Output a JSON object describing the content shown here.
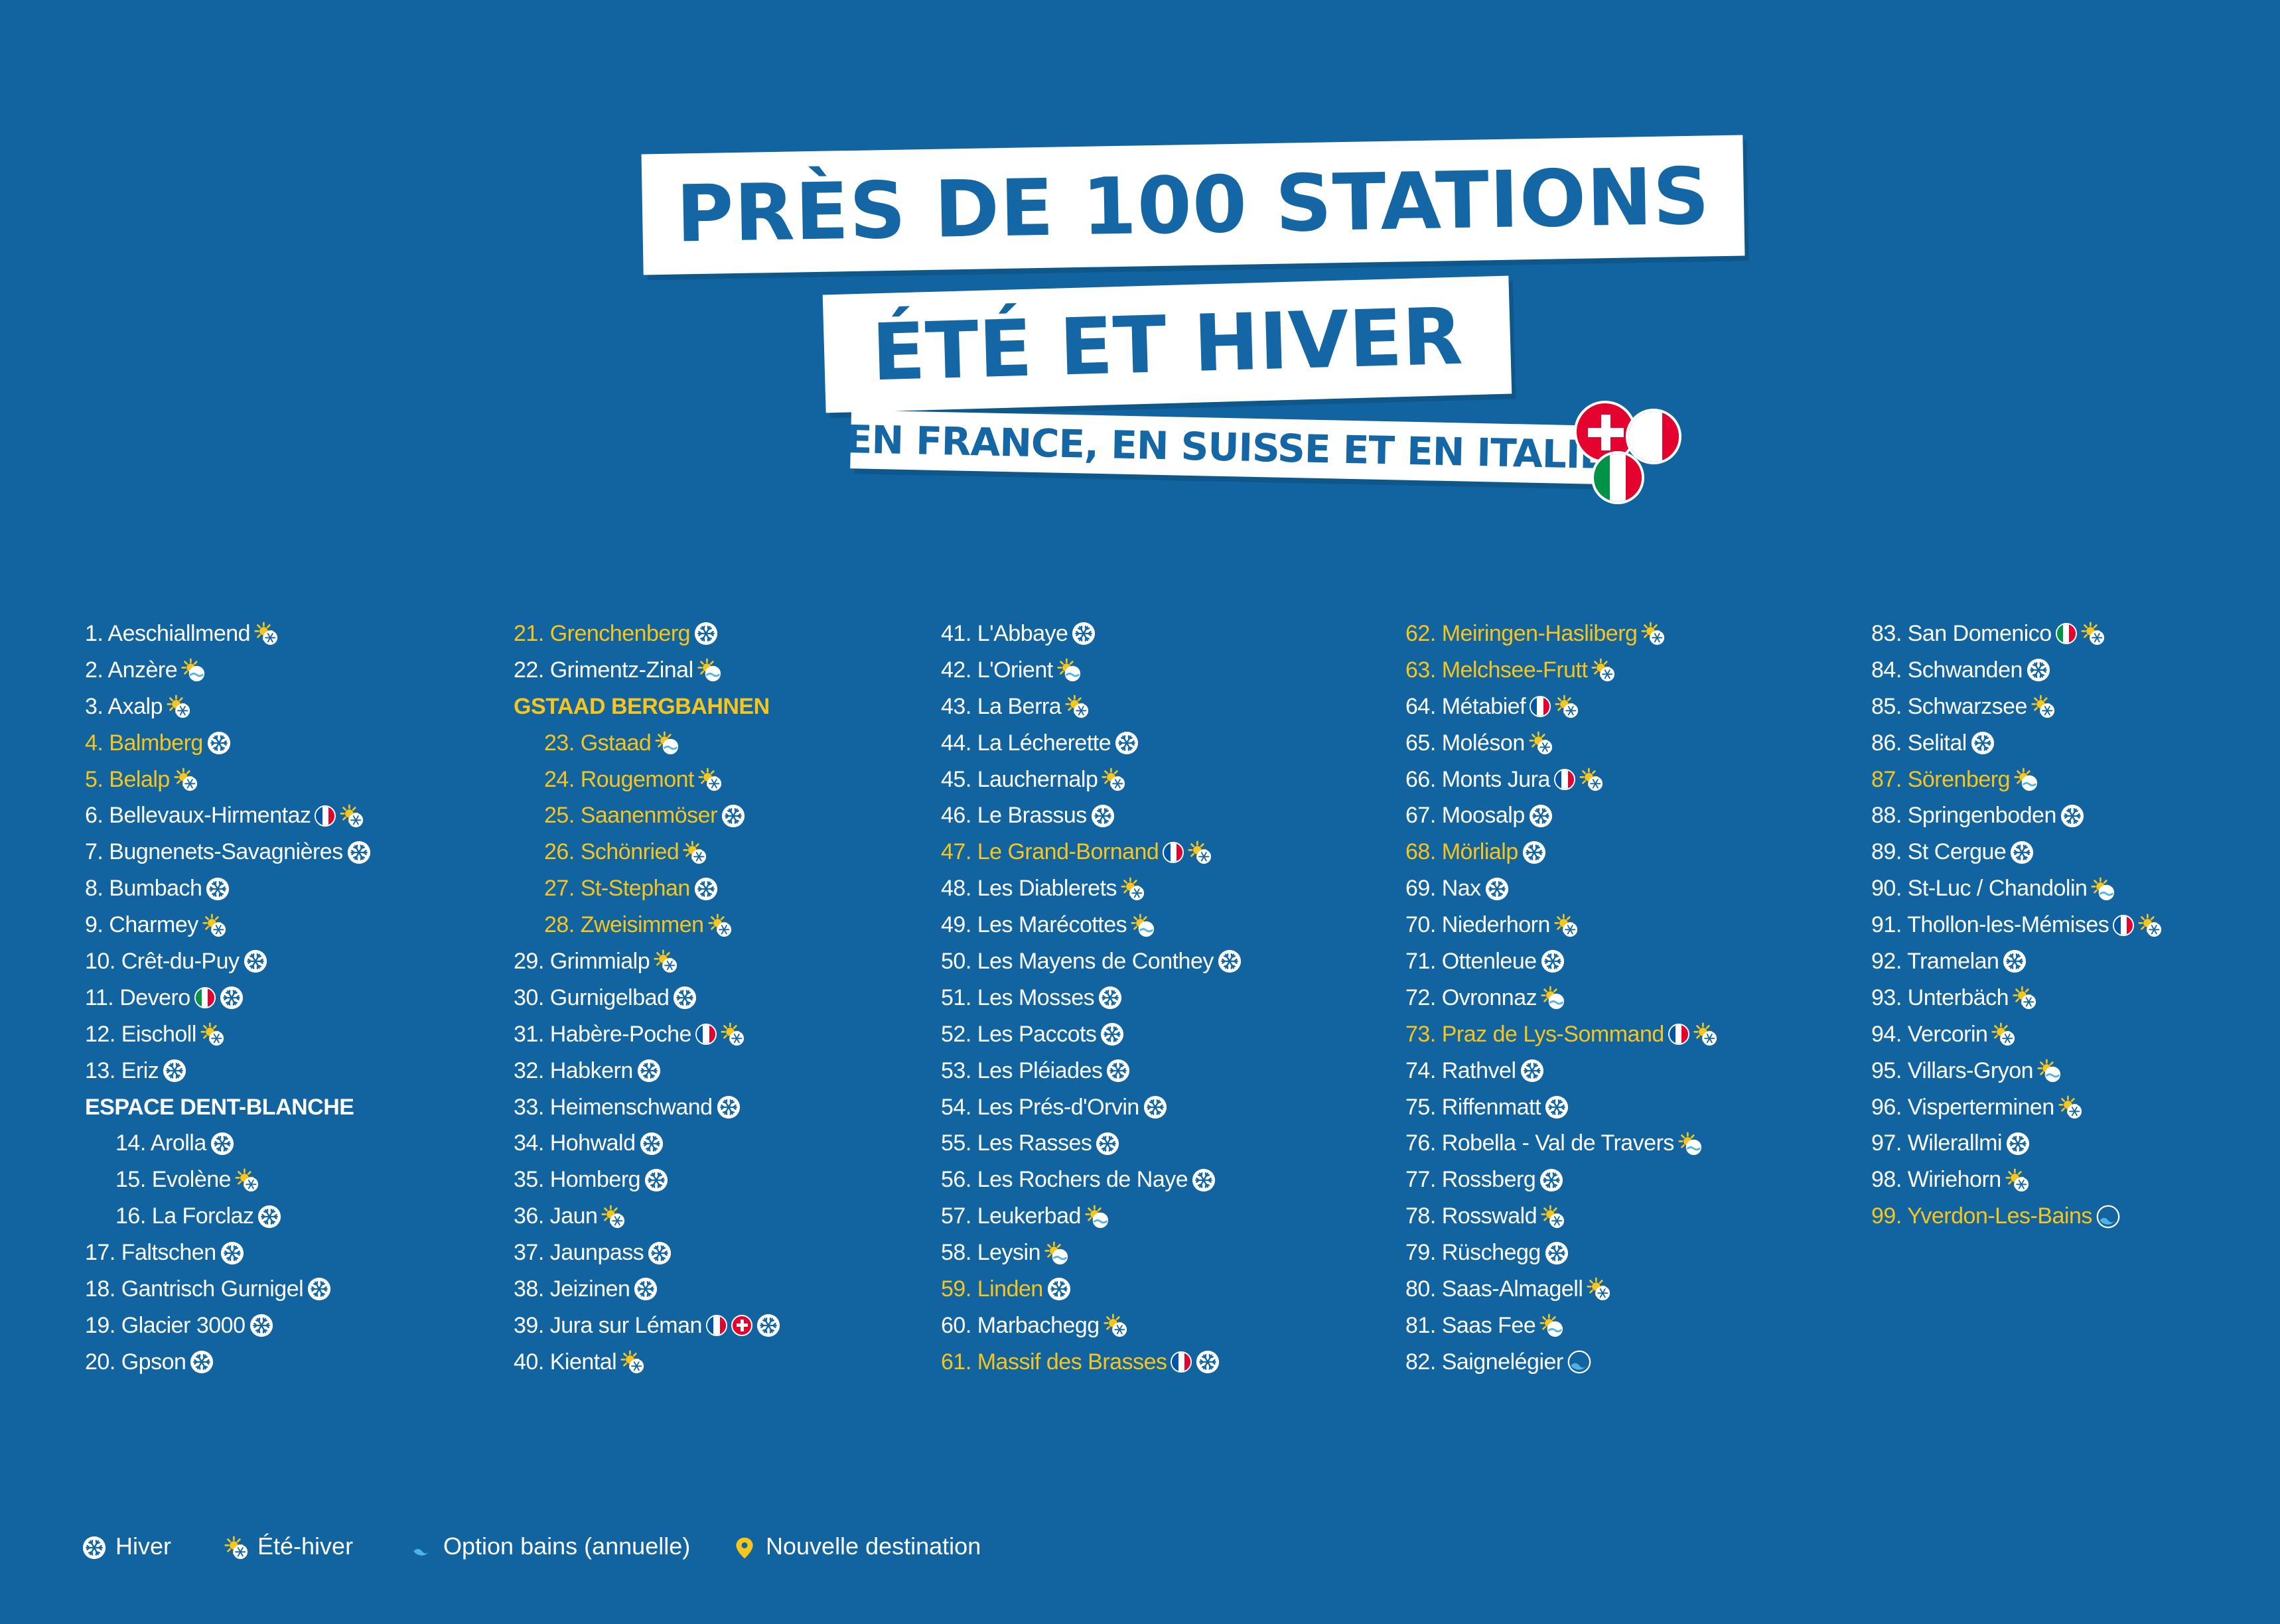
{
  "title": {
    "line1": "PRÈS DE 100 STATIONS",
    "line2": "ÉTÉ ET HIVER",
    "line3": "EN FRANCE, EN SUISSE ET EN ITALIE"
  },
  "colors": {
    "background": "#11649f",
    "highlight": "#f7c51c",
    "banner_text": "#1566a5"
  },
  "columns": [
    [
      {
        "text": "1. Aeschiallmend",
        "icons": [
          "summer-winter-icon"
        ]
      },
      {
        "text": "2. Anzère",
        "icons": [
          "bath-icon"
        ]
      },
      {
        "text": "3. Axalp",
        "icons": [
          "summer-winter-icon"
        ]
      },
      {
        "text": "4. Balmberg",
        "icons": [
          "winter-icon"
        ],
        "new": true
      },
      {
        "text": "5. Belalp",
        "icons": [
          "summer-winter-icon"
        ],
        "new": true
      },
      {
        "text": "6. Bellevaux-Hirmentaz",
        "icons": [
          "flag-fr",
          "summer-winter-icon"
        ]
      },
      {
        "text": "7. Bugnenets-Savagnières",
        "icons": [
          "winter-icon"
        ]
      },
      {
        "text": "8. Bumbach",
        "icons": [
          "winter-icon"
        ]
      },
      {
        "text": "9. Charmey",
        "icons": [
          "summer-winter-icon"
        ]
      },
      {
        "text": "10. Crêt-du-Puy",
        "icons": [
          "winter-icon"
        ]
      },
      {
        "text": "11. Devero",
        "icons": [
          "flag-it",
          "winter-icon"
        ]
      },
      {
        "text": "12. Eischoll",
        "icons": [
          "summer-winter-icon"
        ]
      },
      {
        "text": "13. Eriz",
        "icons": [
          "winter-icon"
        ]
      },
      {
        "text": "ESPACE DENT-BLANCHE",
        "heading": true
      },
      {
        "text": "14. Arolla",
        "icons": [
          "winter-icon"
        ],
        "indent": true
      },
      {
        "text": "15. Evolène",
        "icons": [
          "summer-winter-icon"
        ],
        "indent": true
      },
      {
        "text": "16. La Forclaz",
        "icons": [
          "winter-icon"
        ],
        "indent": true
      },
      {
        "text": "17. Faltschen",
        "icons": [
          "winter-icon"
        ]
      },
      {
        "text": "18. Gantrisch Gurnigel",
        "icons": [
          "winter-icon"
        ]
      },
      {
        "text": "19. Glacier 3000",
        "icons": [
          "winter-icon"
        ]
      },
      {
        "text": "20. Gpson",
        "icons": [
          "winter-icon"
        ]
      }
    ],
    [
      {
        "text": "21. Grenchenberg",
        "icons": [
          "winter-icon"
        ],
        "new": true
      },
      {
        "text": "22. Grimentz-Zinal",
        "icons": [
          "bath-icon"
        ]
      },
      {
        "text": "GSTAAD BERGBAHNEN",
        "heading": true,
        "new": true
      },
      {
        "text": "23. Gstaad",
        "icons": [
          "bath-icon"
        ],
        "indent": true,
        "new": true
      },
      {
        "text": "24. Rougemont",
        "icons": [
          "summer-winter-icon"
        ],
        "indent": true,
        "new": true
      },
      {
        "text": "25. Saanenmöser",
        "icons": [
          "winter-icon"
        ],
        "indent": true,
        "new": true
      },
      {
        "text": "26. Schönried",
        "icons": [
          "summer-winter-icon"
        ],
        "indent": true,
        "new": true
      },
      {
        "text": "27. St-Stephan",
        "icons": [
          "winter-icon"
        ],
        "indent": true,
        "new": true
      },
      {
        "text": "28. Zweisimmen",
        "icons": [
          "summer-winter-icon"
        ],
        "indent": true,
        "new": true
      },
      {
        "text": "29. Grimmialp",
        "icons": [
          "summer-winter-icon"
        ]
      },
      {
        "text": "30. Gurnigelbad",
        "icons": [
          "winter-icon"
        ]
      },
      {
        "text": "31. Habère-Poche",
        "icons": [
          "flag-fr",
          "summer-winter-icon"
        ]
      },
      {
        "text": "32. Habkern",
        "icons": [
          "winter-icon"
        ]
      },
      {
        "text": "33. Heimenschwand",
        "icons": [
          "winter-icon"
        ]
      },
      {
        "text": "34. Hohwald",
        "icons": [
          "winter-icon"
        ]
      },
      {
        "text": "35. Homberg",
        "icons": [
          "winter-icon"
        ]
      },
      {
        "text": "36. Jaun",
        "icons": [
          "summer-winter-icon"
        ]
      },
      {
        "text": "37. Jaunpass",
        "icons": [
          "winter-icon"
        ]
      },
      {
        "text": "38. Jeizinen",
        "icons": [
          "winter-icon"
        ]
      },
      {
        "text": "39. Jura sur Léman",
        "icons": [
          "flag-fr",
          "flag-ch",
          "winter-icon"
        ]
      },
      {
        "text": "40. Kiental",
        "icons": [
          "summer-winter-icon"
        ]
      }
    ],
    [
      {
        "text": "41. L'Abbaye",
        "icons": [
          "winter-icon"
        ]
      },
      {
        "text": "42. L'Orient",
        "icons": [
          "bath-icon"
        ]
      },
      {
        "text": "43. La Berra",
        "icons": [
          "summer-winter-icon"
        ]
      },
      {
        "text": "44. La Lécherette",
        "icons": [
          "winter-icon"
        ]
      },
      {
        "text": "45. Lauchernalp",
        "icons": [
          "summer-winter-icon"
        ]
      },
      {
        "text": "46. Le Brassus",
        "icons": [
          "winter-icon"
        ]
      },
      {
        "text": "47. Le Grand-Bornand",
        "icons": [
          "flag-fr",
          "summer-winter-icon"
        ],
        "new": true
      },
      {
        "text": "48. Les Diablerets",
        "icons": [
          "summer-winter-icon"
        ]
      },
      {
        "text": "49. Les Marécottes",
        "icons": [
          "bath-icon"
        ]
      },
      {
        "text": "50. Les Mayens de Conthey",
        "icons": [
          "winter-icon"
        ]
      },
      {
        "text": "51. Les Mosses",
        "icons": [
          "winter-icon"
        ]
      },
      {
        "text": "52. Les Paccots",
        "icons": [
          "winter-icon"
        ]
      },
      {
        "text": "53. Les Pléiades",
        "icons": [
          "winter-icon"
        ]
      },
      {
        "text": "54. Les Prés-d'Orvin",
        "icons": [
          "winter-icon"
        ]
      },
      {
        "text": "55. Les Rasses",
        "icons": [
          "winter-icon"
        ]
      },
      {
        "text": "56. Les Rochers de Naye",
        "icons": [
          "winter-icon"
        ]
      },
      {
        "text": "57. Leukerbad",
        "icons": [
          "bath-icon"
        ]
      },
      {
        "text": "58. Leysin",
        "icons": [
          "bath-icon"
        ]
      },
      {
        "text": "59. Linden",
        "icons": [
          "winter-icon"
        ],
        "new": true
      },
      {
        "text": "60. Marbachegg",
        "icons": [
          "summer-winter-icon"
        ]
      },
      {
        "text": "61. Massif des Brasses",
        "icons": [
          "flag-fr",
          "winter-icon"
        ],
        "new": true
      }
    ],
    [
      {
        "text": "62. Meiringen-Hasliberg",
        "icons": [
          "summer-winter-icon"
        ],
        "new": true
      },
      {
        "text": "63. Melchsee-Frutt",
        "icons": [
          "summer-winter-icon"
        ],
        "new": true
      },
      {
        "text": "64. Métabief",
        "icons": [
          "flag-fr",
          "summer-winter-icon"
        ]
      },
      {
        "text": "65. Moléson",
        "icons": [
          "summer-winter-icon"
        ]
      },
      {
        "text": "66. Monts Jura",
        "icons": [
          "flag-fr",
          "summer-winter-icon"
        ]
      },
      {
        "text": "67. Moosalp",
        "icons": [
          "winter-icon"
        ]
      },
      {
        "text": "68. Mörlialp",
        "icons": [
          "winter-icon"
        ],
        "new": true
      },
      {
        "text": "69. Nax",
        "icons": [
          "winter-icon"
        ]
      },
      {
        "text": "70. Niederhorn",
        "icons": [
          "summer-winter-icon"
        ]
      },
      {
        "text": "71. Ottenleue",
        "icons": [
          "winter-icon"
        ]
      },
      {
        "text": "72. Ovronnaz",
        "icons": [
          "bath-icon"
        ]
      },
      {
        "text": "73. Praz de Lys-Sommand",
        "icons": [
          "flag-fr",
          "summer-winter-icon"
        ],
        "new": true
      },
      {
        "text": "74. Rathvel",
        "icons": [
          "winter-icon"
        ]
      },
      {
        "text": "75. Riffenmatt",
        "icons": [
          "winter-icon"
        ]
      },
      {
        "text": "76. Robella - Val de Travers",
        "icons": [
          "bath-icon"
        ]
      },
      {
        "text": "77. Rossberg",
        "icons": [
          "winter-icon"
        ]
      },
      {
        "text": "78. Rosswald",
        "icons": [
          "summer-winter-icon"
        ]
      },
      {
        "text": "79. Rüschegg",
        "icons": [
          "winter-icon"
        ]
      },
      {
        "text": "80. Saas-Almagell",
        "icons": [
          "summer-winter-icon"
        ]
      },
      {
        "text": "81. Saas Fee",
        "icons": [
          "bath-icon"
        ]
      },
      {
        "text": "82. Saignelégier",
        "icons": [
          "wave-icon"
        ]
      }
    ],
    [
      {
        "text": "83. San Domenico",
        "icons": [
          "flag-it",
          "summer-winter-icon"
        ]
      },
      {
        "text": "84. Schwanden",
        "icons": [
          "winter-icon"
        ]
      },
      {
        "text": "85. Schwarzsee",
        "icons": [
          "summer-winter-icon"
        ]
      },
      {
        "text": "86. Selital",
        "icons": [
          "winter-icon"
        ]
      },
      {
        "text": "87. Sörenberg",
        "icons": [
          "bath-icon"
        ],
        "new": true
      },
      {
        "text": "88. Springenboden",
        "icons": [
          "winter-icon"
        ]
      },
      {
        "text": "89. St Cergue",
        "icons": [
          "winter-icon"
        ]
      },
      {
        "text": "90. St-Luc / Chandolin",
        "icons": [
          "bath-icon"
        ]
      },
      {
        "text": "91. Thollon-les-Mémises",
        "icons": [
          "flag-fr",
          "summer-winter-icon"
        ]
      },
      {
        "text": "92. Tramelan",
        "icons": [
          "winter-icon"
        ]
      },
      {
        "text": "93. Unterbäch",
        "icons": [
          "summer-winter-icon"
        ]
      },
      {
        "text": "94. Vercorin",
        "icons": [
          "summer-winter-icon"
        ]
      },
      {
        "text": "95. Villars-Gryon",
        "icons": [
          "bath-icon"
        ]
      },
      {
        "text": "96. Visperterminen",
        "icons": [
          "summer-winter-icon"
        ]
      },
      {
        "text": "97. Wilerallmi",
        "icons": [
          "winter-icon"
        ]
      },
      {
        "text": "98. Wiriehorn",
        "icons": [
          "summer-winter-icon"
        ]
      },
      {
        "text": "99. Yverdon-Les-Bains",
        "icons": [
          "wave-icon"
        ],
        "new": true
      }
    ]
  ],
  "legend": {
    "winter": "Hiver",
    "summer_winter": "Été-hiver",
    "bath": "Option bains (annuelle)",
    "new": "Nouvelle destination"
  }
}
